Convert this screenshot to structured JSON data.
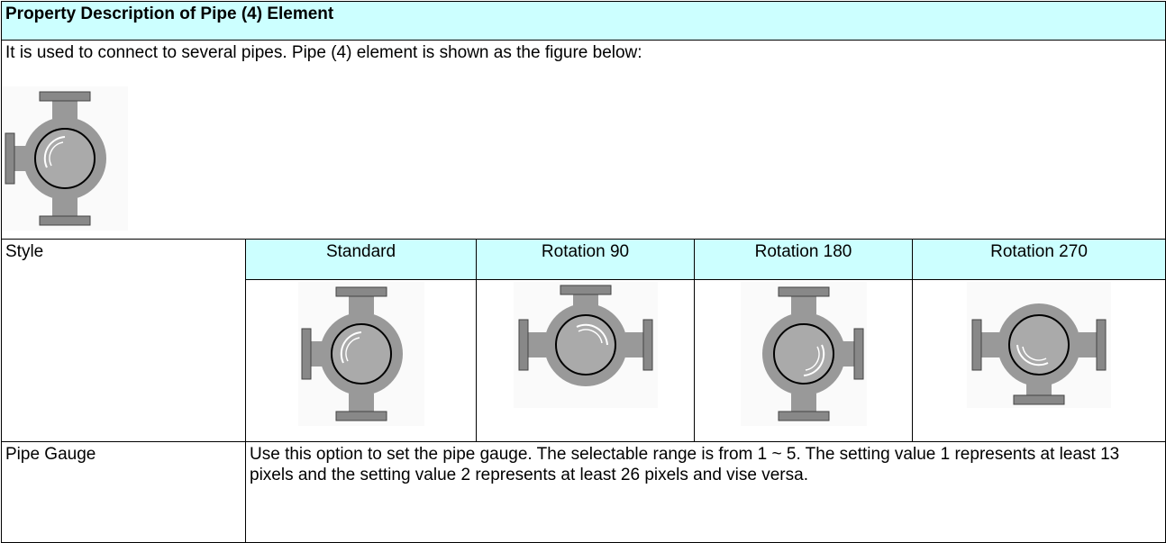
{
  "header": {
    "title": "Property Description of Pipe (4) Element"
  },
  "intro": {
    "text": "It is used to connect to several pipes. Pipe (4) element is shown as the figure below:"
  },
  "style": {
    "label": "Style",
    "columns": [
      "Standard",
      "Rotation 90",
      "Rotation 180",
      "Rotation 270"
    ]
  },
  "gauge": {
    "label": "Pipe Gauge",
    "text": "Use this option to set the pipe gauge. The selectable range is from 1 ~ 5. The setting value 1 represents at least 13 pixels and the setting value 2 represents at least 26 pixels and vise versa."
  }
}
